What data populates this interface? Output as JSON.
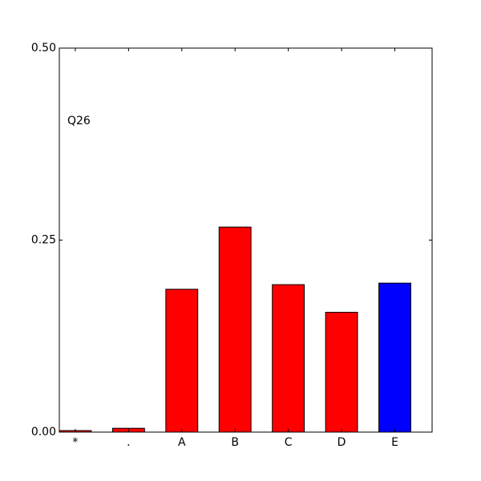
{
  "chart_data": {
    "type": "bar",
    "annotation": "Q26",
    "categories": [
      "*",
      ".",
      "A",
      "B",
      "C",
      "D",
      "E"
    ],
    "values": [
      0.002,
      0.005,
      0.186,
      0.267,
      0.192,
      0.156,
      0.194
    ],
    "colors": [
      "#ff0000",
      "#ff0000",
      "#ff0000",
      "#ff0000",
      "#ff0000",
      "#ff0000",
      "#0000ff"
    ],
    "ylim": [
      0,
      0.5
    ],
    "yticks": [
      {
        "value": 0,
        "label": "0.00"
      },
      {
        "value": 0.25,
        "label": "0.25"
      },
      {
        "value": 0.5,
        "label": "0.50"
      }
    ],
    "grid": false
  }
}
